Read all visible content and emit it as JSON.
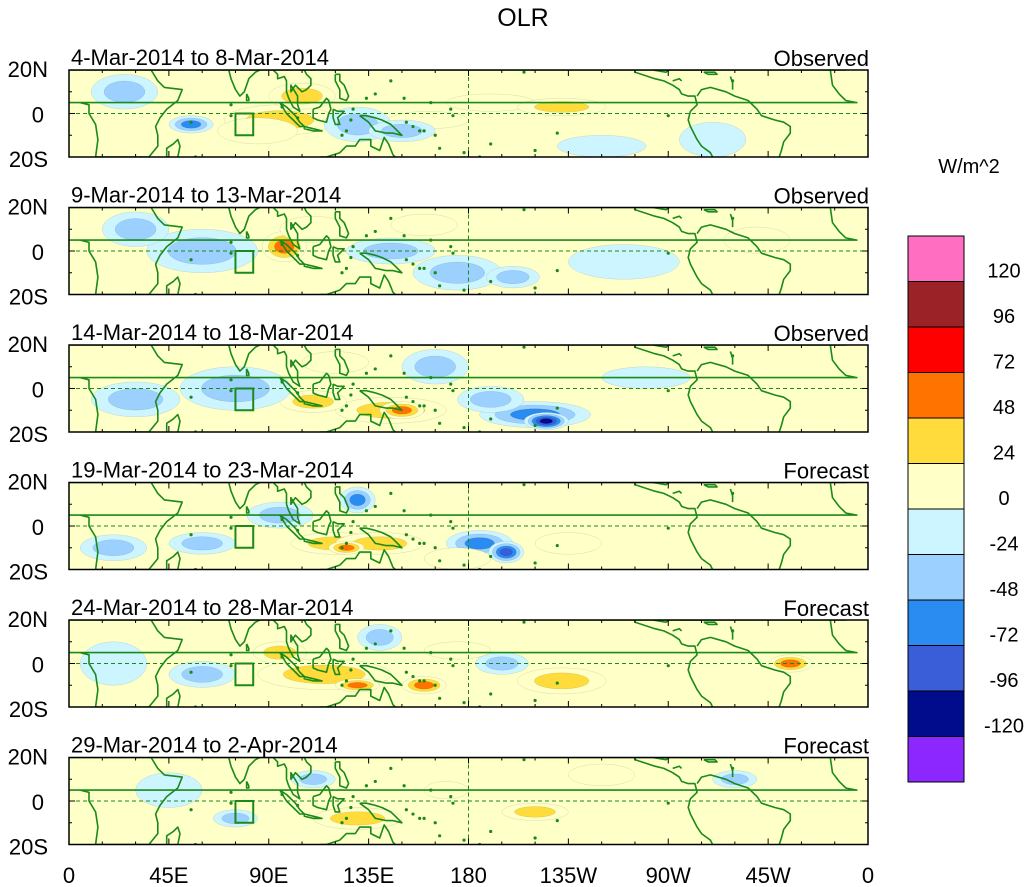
{
  "chart_data": {
    "type": "heatmap",
    "title": "OLR",
    "units": "W/m^2",
    "x_range_deg": [
      0,
      360
    ],
    "x_tick_labels": [
      "0",
      "45E",
      "90E",
      "135E",
      "180",
      "135W",
      "90W",
      "45W",
      "0"
    ],
    "y_range_deg": [
      -20,
      20
    ],
    "y_tick_labels": [
      "20N",
      "0",
      "20S"
    ],
    "colorbar": {
      "levels": [
        "120",
        "96",
        "72",
        "48",
        "24",
        "0",
        "-24",
        "-48",
        "-72",
        "-96",
        "-120"
      ],
      "colors": [
        "#ff6ec0",
        "#9b2226",
        "#ff0000",
        "#ff7300",
        "#ffdc3c",
        "#ffffc8",
        "#cdf5ff",
        "#9bd0ff",
        "#2a8cf0",
        "#3a5ed8",
        "#000c8c",
        "#8c28ff"
      ]
    },
    "overlay_colors": {
      "coastline": "#1a8a1a",
      "equator": "#1a8a1a"
    },
    "reference_box": {
      "lon": [
        75,
        83
      ],
      "lat": [
        -10,
        0
      ]
    },
    "panels": [
      {
        "period": "4-Mar-2014 to 8-Mar-2014",
        "kind": "Observed",
        "anomalies": [
          {
            "lon": 95,
            "lat": -3,
            "rlon": 25,
            "rlat": 7,
            "value": 30
          },
          {
            "lon": 85,
            "lat": -8,
            "rlon": 18,
            "rlat": 6,
            "value": 20
          },
          {
            "lon": 105,
            "lat": 8,
            "rlon": 15,
            "rlat": 6,
            "value": 25
          },
          {
            "lon": 162,
            "lat": -3,
            "rlon": 18,
            "rlat": 4,
            "value": 20
          },
          {
            "lon": 190,
            "lat": 5,
            "rlon": 20,
            "rlat": 4,
            "value": 15
          },
          {
            "lon": 222,
            "lat": 3,
            "rlon": 20,
            "rlat": 4,
            "value": 25
          },
          {
            "lon": 55,
            "lat": -5,
            "rlon": 10,
            "rlat": 4,
            "value": -50
          },
          {
            "lon": 130,
            "lat": -5,
            "rlon": 15,
            "rlat": 8,
            "value": -35
          },
          {
            "lon": 25,
            "lat": 10,
            "rlon": 15,
            "rlat": 8,
            "value": -30
          },
          {
            "lon": 150,
            "lat": -8,
            "rlon": 15,
            "rlat": 5,
            "value": -30
          },
          {
            "lon": 290,
            "lat": -12,
            "rlon": 15,
            "rlat": 8,
            "value": -20
          },
          {
            "lon": 240,
            "lat": -15,
            "rlon": 20,
            "rlat": 5,
            "value": -15
          }
        ]
      },
      {
        "period": "9-Mar-2014 to 13-Mar-2014",
        "kind": "Observed",
        "anomalies": [
          {
            "lon": 97,
            "lat": 2,
            "rlon": 10,
            "rlat": 7,
            "value": 55
          },
          {
            "lon": 110,
            "lat": 10,
            "rlon": 15,
            "rlat": 6,
            "value": 20
          },
          {
            "lon": 60,
            "lat": 0,
            "rlon": 25,
            "rlat": 10,
            "value": -30
          },
          {
            "lon": 30,
            "lat": 10,
            "rlon": 15,
            "rlat": 8,
            "value": -40
          },
          {
            "lon": 145,
            "lat": 0,
            "rlon": 20,
            "rlat": 6,
            "value": -35
          },
          {
            "lon": 175,
            "lat": -10,
            "rlon": 20,
            "rlat": 8,
            "value": -45
          },
          {
            "lon": 200,
            "lat": -12,
            "rlon": 12,
            "rlat": 5,
            "value": -40
          },
          {
            "lon": 160,
            "lat": 12,
            "rlon": 15,
            "rlat": 5,
            "value": 15
          },
          {
            "lon": 250,
            "lat": -5,
            "rlon": 25,
            "rlat": 8,
            "value": -15
          },
          {
            "lon": 310,
            "lat": 5,
            "rlon": 15,
            "rlat": 6,
            "value": 12
          }
        ]
      },
      {
        "period": "14-Mar-2014 to 18-Mar-2014",
        "kind": "Observed",
        "anomalies": [
          {
            "lon": 210,
            "lat": -12,
            "rlon": 25,
            "rlat": 6,
            "value": -65
          },
          {
            "lon": 215,
            "lat": -15,
            "rlon": 10,
            "rlat": 4,
            "value": -110
          },
          {
            "lon": 190,
            "lat": -5,
            "rlon": 15,
            "rlat": 6,
            "value": -45
          },
          {
            "lon": 165,
            "lat": 10,
            "rlon": 15,
            "rlat": 8,
            "value": -35
          },
          {
            "lon": 145,
            "lat": -10,
            "rlon": 25,
            "rlat": 6,
            "value": 30
          },
          {
            "lon": 150,
            "lat": -10,
            "rlon": 10,
            "rlat": 4,
            "value": 60
          },
          {
            "lon": 110,
            "lat": -6,
            "rlon": 15,
            "rlat": 5,
            "value": 25
          },
          {
            "lon": 75,
            "lat": 0,
            "rlon": 25,
            "rlat": 10,
            "value": -35
          },
          {
            "lon": 30,
            "lat": -5,
            "rlon": 20,
            "rlat": 8,
            "value": -25
          },
          {
            "lon": 120,
            "lat": 12,
            "rlon": 15,
            "rlat": 5,
            "value": 15
          },
          {
            "lon": 260,
            "lat": 5,
            "rlon": 20,
            "rlat": 5,
            "value": -15
          }
        ]
      },
      {
        "period": "19-Mar-2014 to 23-Mar-2014",
        "kind": "Forecast",
        "anomalies": [
          {
            "lon": 120,
            "lat": -8,
            "rlon": 20,
            "rlat": 5,
            "value": 40
          },
          {
            "lon": 140,
            "lat": -8,
            "rlon": 20,
            "rlat": 5,
            "value": 35
          },
          {
            "lon": 125,
            "lat": -10,
            "rlon": 8,
            "rlat": 3,
            "value": 60
          },
          {
            "lon": 185,
            "lat": -8,
            "rlon": 15,
            "rlat": 6,
            "value": -55
          },
          {
            "lon": 197,
            "lat": -12,
            "rlon": 8,
            "rlat": 5,
            "value": -95
          },
          {
            "lon": 130,
            "lat": 12,
            "rlon": 8,
            "rlat": 6,
            "value": -50
          },
          {
            "lon": 95,
            "lat": 5,
            "rlon": 15,
            "rlat": 6,
            "value": -30
          },
          {
            "lon": 60,
            "lat": -8,
            "rlon": 15,
            "rlat": 5,
            "value": -40
          },
          {
            "lon": 175,
            "lat": -15,
            "rlon": 15,
            "rlat": 5,
            "value": 20
          },
          {
            "lon": 225,
            "lat": -8,
            "rlon": 15,
            "rlat": 5,
            "value": 20
          },
          {
            "lon": 20,
            "lat": -10,
            "rlon": 15,
            "rlat": 6,
            "value": -25
          }
        ]
      },
      {
        "period": "24-Mar-2014 to 28-Mar-2014",
        "kind": "Forecast",
        "anomalies": [
          {
            "lon": 115,
            "lat": -5,
            "rlon": 30,
            "rlat": 7,
            "value": 35
          },
          {
            "lon": 130,
            "lat": -10,
            "rlon": 10,
            "rlat": 3,
            "value": 55
          },
          {
            "lon": 160,
            "lat": -10,
            "rlon": 10,
            "rlat": 4,
            "value": 50
          },
          {
            "lon": 95,
            "lat": 5,
            "rlon": 12,
            "rlat": 5,
            "value": 30
          },
          {
            "lon": 325,
            "lat": 0,
            "rlon": 10,
            "rlat": 4,
            "value": 55
          },
          {
            "lon": 222,
            "lat": -8,
            "rlon": 20,
            "rlat": 6,
            "value": 25
          },
          {
            "lon": 195,
            "lat": 0,
            "rlon": 12,
            "rlat": 5,
            "value": -45
          },
          {
            "lon": 60,
            "lat": -5,
            "rlon": 15,
            "rlat": 6,
            "value": -40
          },
          {
            "lon": 140,
            "lat": 12,
            "rlon": 10,
            "rlat": 6,
            "value": -35
          },
          {
            "lon": 175,
            "lat": 6,
            "rlon": 15,
            "rlat": 4,
            "value": 20
          },
          {
            "lon": 20,
            "lat": 0,
            "rlon": 15,
            "rlat": 10,
            "value": -20
          }
        ]
      },
      {
        "period": "29-Mar-2014 to 2-Apr-2014",
        "kind": "Forecast",
        "anomalies": [
          {
            "lon": 130,
            "lat": -8,
            "rlon": 20,
            "rlat": 5,
            "value": 30
          },
          {
            "lon": 210,
            "lat": -5,
            "rlon": 15,
            "rlat": 4,
            "value": 25
          },
          {
            "lon": 300,
            "lat": 10,
            "rlon": 10,
            "rlat": 4,
            "value": -35
          },
          {
            "lon": 75,
            "lat": -8,
            "rlon": 10,
            "rlat": 4,
            "value": -35
          },
          {
            "lon": 110,
            "lat": 10,
            "rlon": 10,
            "rlat": 4,
            "value": -25
          },
          {
            "lon": 170,
            "lat": 5,
            "rlon": 10,
            "rlat": 4,
            "value": 15
          },
          {
            "lon": 240,
            "lat": 12,
            "rlon": 15,
            "rlat": 5,
            "value": 15
          },
          {
            "lon": 45,
            "lat": 5,
            "rlon": 15,
            "rlat": 8,
            "value": -20
          }
        ]
      }
    ]
  }
}
